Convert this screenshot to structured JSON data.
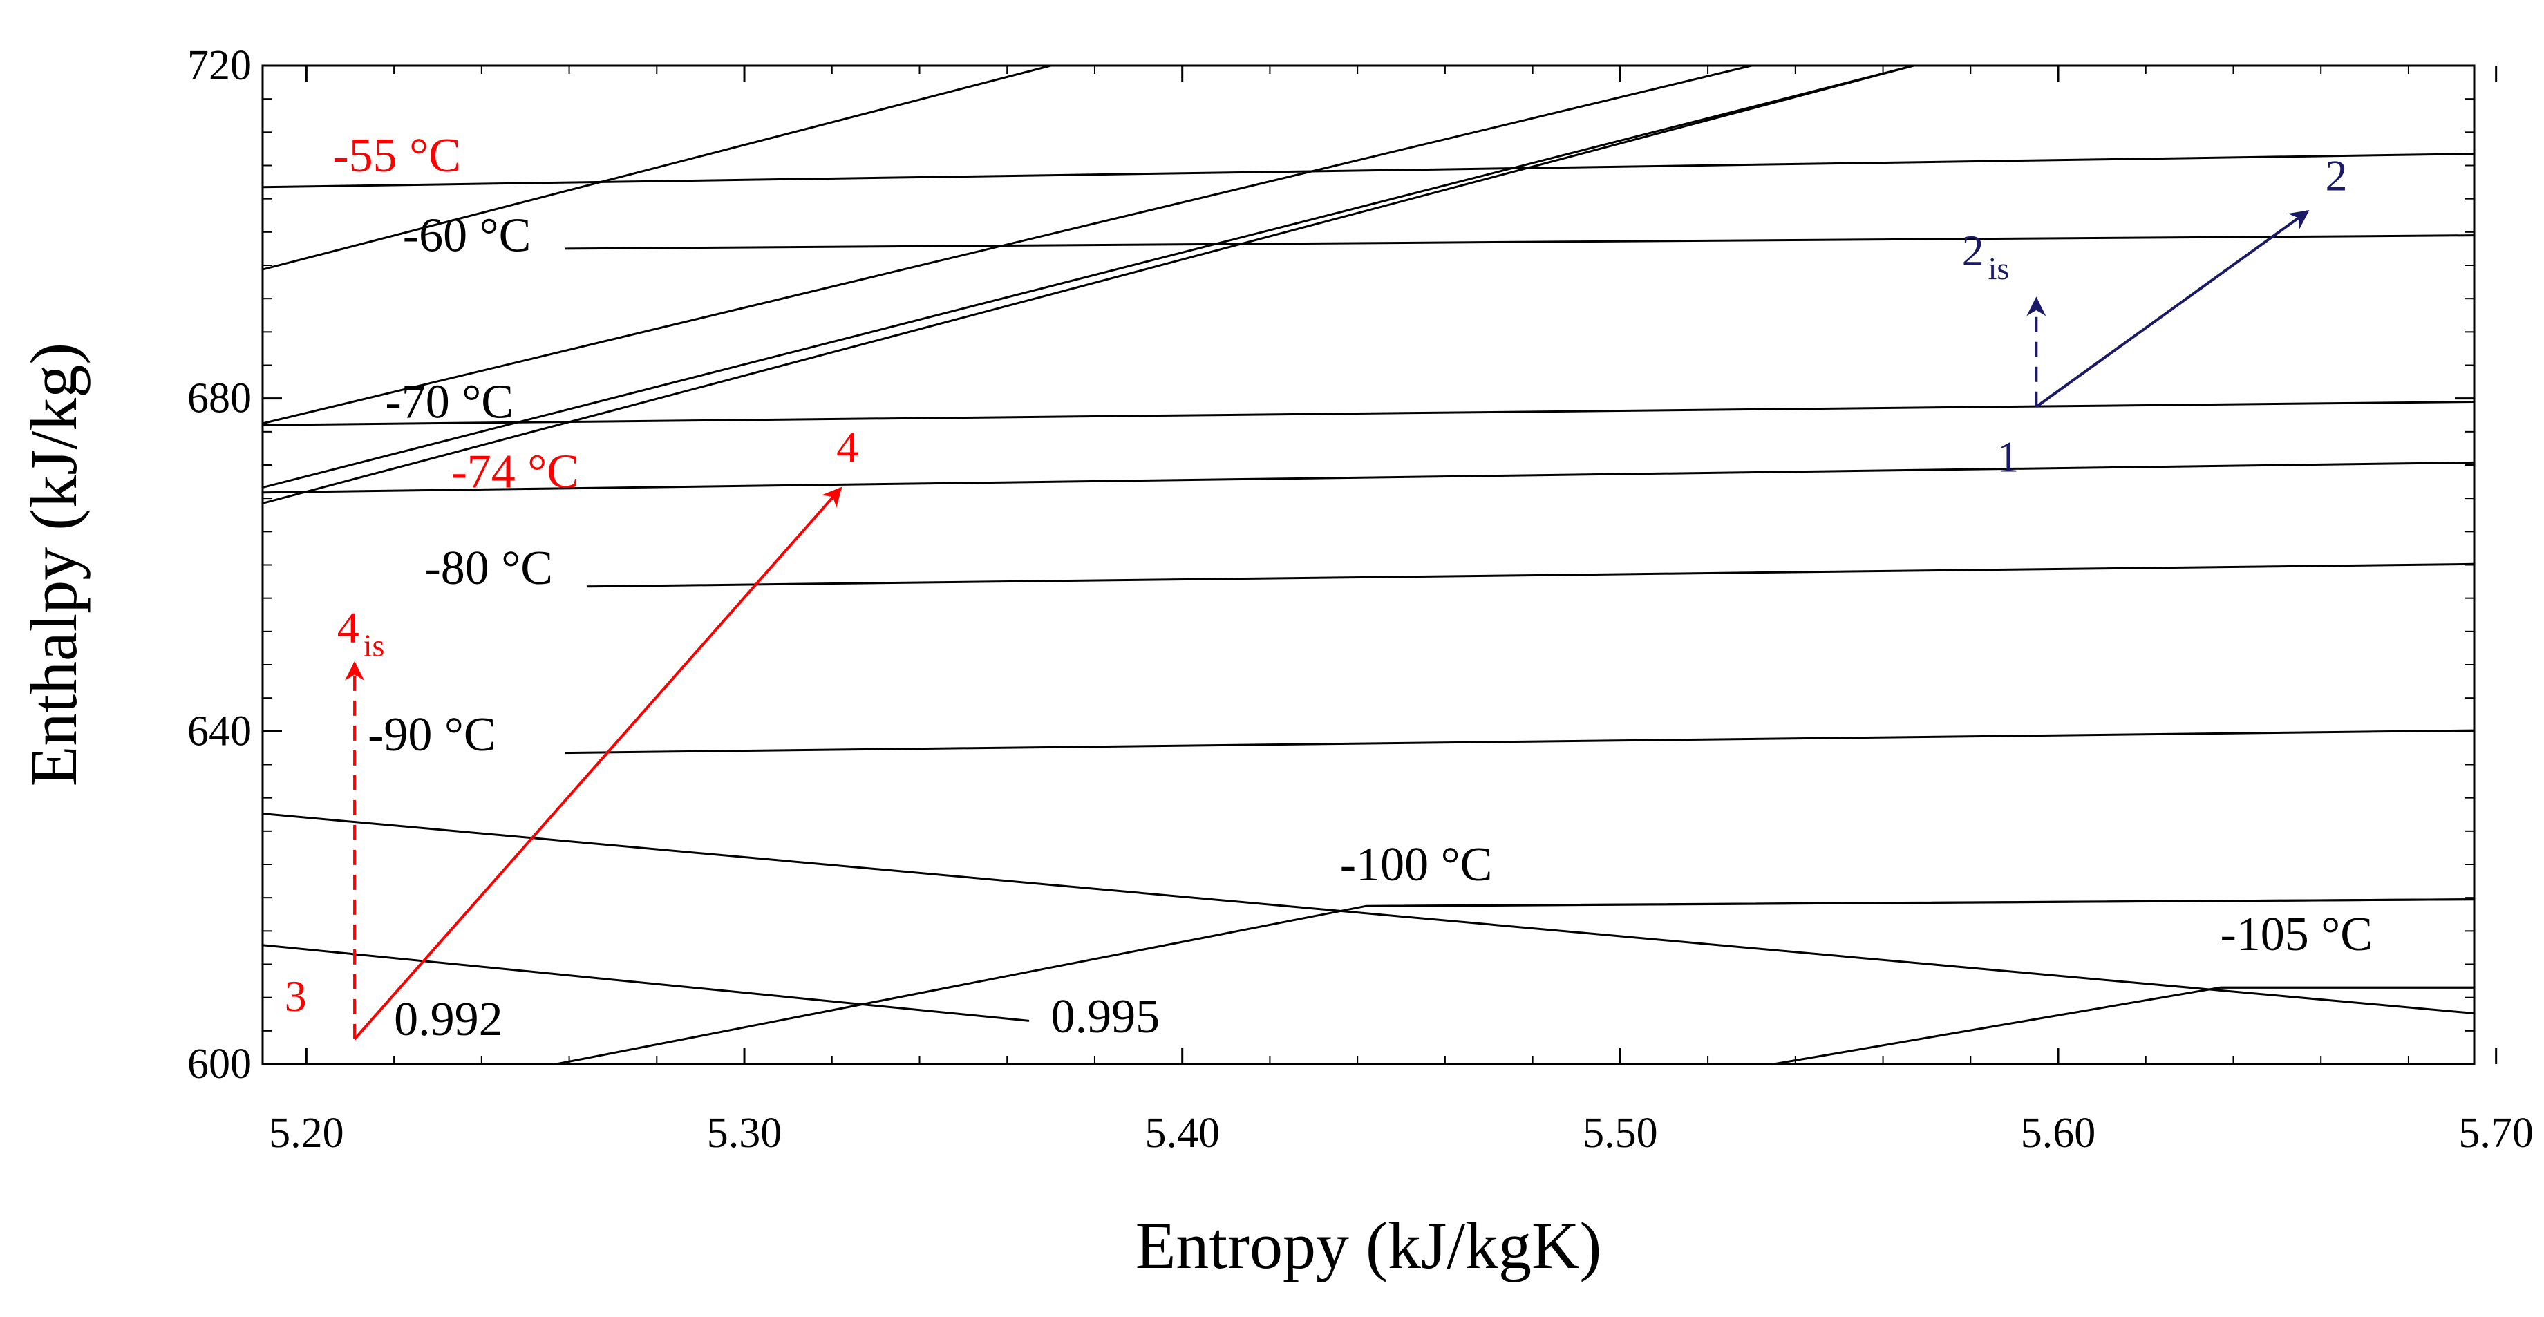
{
  "chart_data": {
    "type": "line",
    "title": "",
    "xlabel": "Entropy (kJ/kgK)",
    "ylabel": "Enthalpy (kJ/kg)",
    "xlim": [
      5.19,
      5.695
    ],
    "ylim": [
      600,
      720
    ],
    "x_ticks": [
      5.2,
      5.3,
      5.4,
      5.5,
      5.6,
      5.7
    ],
    "x_tick_labels": [
      "5.20",
      "5.30",
      "5.40",
      "5.50",
      "5.60",
      "5.70"
    ],
    "y_ticks": [
      600,
      640,
      680,
      720
    ],
    "y_tick_labels": [
      "600",
      "640",
      "680",
      "720"
    ],
    "isotherms": [
      {
        "name": "-55 °C",
        "color": "#ff0000",
        "points": [
          [
            5.19,
            705.4
          ],
          [
            5.695,
            709.4
          ]
        ],
        "label_at": [
          5.206,
          707.3
        ]
      },
      {
        "name": "-60 °C",
        "color": "#000000",
        "points": [
          [
            5.259,
            698.0
          ],
          [
            5.695,
            699.6
          ]
        ],
        "label_at": [
          5.222,
          697.7
        ]
      },
      {
        "name": "-70 °C",
        "color": "#000000",
        "points": [
          [
            5.19,
            676.8
          ],
          [
            5.695,
            679.6
          ]
        ],
        "label_at": [
          5.218,
          677.7
        ]
      },
      {
        "name": "-74 °C",
        "color": "#ff0000",
        "points": [
          [
            5.19,
            668.7
          ],
          [
            5.695,
            672.3
          ]
        ],
        "label_at": [
          5.233,
          669.3
        ]
      },
      {
        "name": "-80 °C",
        "color": "#000000",
        "points": [
          [
            5.264,
            657.4
          ],
          [
            5.695,
            660.1
          ]
        ],
        "label_at": [
          5.227,
          657.7
        ]
      },
      {
        "name": "-90 °C",
        "color": "#000000",
        "points": [
          [
            5.259,
            637.4
          ],
          [
            5.695,
            640.1
          ]
        ],
        "label_at": [
          5.214,
          637.7
        ]
      },
      {
        "name": "-100 °C",
        "color": "#000000",
        "points": [
          [
            5.452,
            619.0
          ],
          [
            5.695,
            619.8
          ]
        ],
        "label_at": [
          5.436,
          622.1
        ]
      },
      {
        "name": "-105 °C",
        "color": "#000000",
        "points": [
          [
            5.637,
            609.2
          ],
          [
            5.695,
            609.2
          ]
        ],
        "label_at": [
          5.637,
          613.7
        ]
      }
    ],
    "quality_lines": [
      {
        "name": "0.992",
        "color": "#000000",
        "points": [
          [
            5.19,
            630.1
          ],
          [
            5.695,
            606.1
          ]
        ],
        "label_at": [
          5.22,
          603.5
        ]
      },
      {
        "name": "0.995",
        "color": "#000000",
        "points": [
          [
            5.19,
            614.3
          ],
          [
            5.365,
            605.2
          ]
        ],
        "label_at": [
          5.37,
          603.8
        ]
      }
    ],
    "diagonal_lines": [
      {
        "color": "#000000",
        "points": [
          [
            5.19,
            695.5
          ],
          [
            5.37,
            720.0
          ]
        ]
      },
      {
        "color": "#000000",
        "points": [
          [
            5.19,
            677.0
          ],
          [
            5.53,
            720.0
          ]
        ]
      },
      {
        "color": "#000000",
        "points": [
          [
            5.19,
            669.3
          ],
          [
            5.567,
            720.0
          ]
        ]
      },
      {
        "color": "#000000",
        "points": [
          [
            5.19,
            667.4
          ],
          [
            5.567,
            720.0
          ]
        ]
      },
      {
        "color": "#000000",
        "points": [
          [
            5.257,
            600.0
          ],
          [
            5.442,
            619.0
          ],
          [
            5.695,
            619.8
          ]
        ]
      },
      {
        "color": "#000000",
        "points": [
          [
            5.535,
            600.0
          ],
          [
            5.637,
            609.2
          ],
          [
            5.695,
            609.2
          ]
        ]
      }
    ],
    "process_points": [
      {
        "name": "1",
        "sub": "",
        "color": "#1a1a66",
        "s": 5.595,
        "h": 679.0,
        "label_at": [
          5.586,
          671.2
        ]
      },
      {
        "name": "2",
        "sub": "",
        "color": "#1a1a66",
        "s": 5.657,
        "h": 702.5,
        "label_at": [
          5.661,
          705.0
        ]
      },
      {
        "name": "2",
        "sub": "is",
        "color": "#1a1a66",
        "s": 5.595,
        "h": 692.0,
        "label_at": [
          5.578,
          696.0
        ]
      },
      {
        "name": "3",
        "sub": "",
        "color": "#ff0000",
        "s": 5.211,
        "h": 603.0,
        "label_at": [
          5.195,
          606.4
        ]
      },
      {
        "name": "4",
        "sub": "",
        "color": "#ff0000",
        "s": 5.322,
        "h": 669.2,
        "label_at": [
          5.321,
          672.4
        ]
      },
      {
        "name": "4",
        "sub": "is",
        "color": "#ff0000",
        "s": 5.211,
        "h": 648.2,
        "label_at": [
          5.207,
          650.7
        ]
      }
    ],
    "process_arrows": [
      {
        "from": "1",
        "to": "2",
        "style": "solid",
        "color": "#1a1a66"
      },
      {
        "from": "1",
        "to": "2 is",
        "style": "dashed",
        "color": "#1a1a66"
      },
      {
        "from": "3",
        "to": "4",
        "style": "solid",
        "color": "#ff0000"
      },
      {
        "from": "3",
        "to": "4 is",
        "style": "dashed",
        "color": "#ff0000"
      }
    ]
  }
}
